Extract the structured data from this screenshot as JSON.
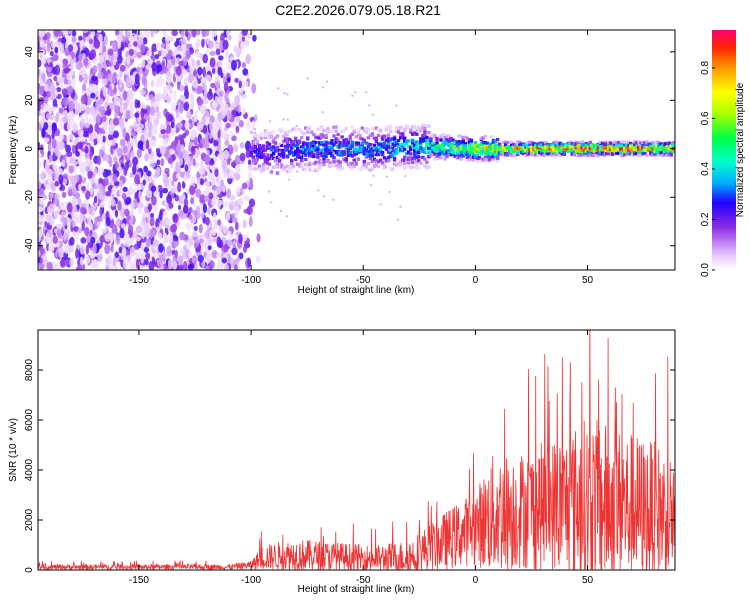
{
  "title": "C2E2.2026.079.05.18.R21",
  "chart_data": [
    {
      "type": "heatmap",
      "xlabel": "Height of straight line (km)",
      "ylabel": "Frequency (Hz)",
      "xlim": [
        -195,
        89
      ],
      "ylim": [
        -50,
        49
      ],
      "xticks": [
        -150,
        -100,
        -50,
        0,
        50
      ],
      "yticks": [
        -40,
        -20,
        0,
        20,
        40
      ],
      "colorbar": {
        "label": "Normalized spectral amplitude",
        "range": [
          0,
          0.95
        ],
        "ticks": [
          0.0,
          0.2,
          0.4,
          0.6,
          0.8
        ],
        "tick_labels": [
          "0.0",
          "0.2",
          "0.4",
          "0.6",
          "0.8"
        ]
      },
      "description_points": {
        "noise_region_x": [
          -195,
          -95
        ],
        "main_band_frequency": 0,
        "band_x_range": [
          -100,
          89
        ]
      },
      "band_profile": [
        {
          "x": -100,
          "center_hz": -2,
          "peak_amplitude": 0.25
        },
        {
          "x": -75,
          "center_hz": 0,
          "peak_amplitude": 0.35
        },
        {
          "x": -50,
          "center_hz": 0,
          "peak_amplitude": 0.35
        },
        {
          "x": -25,
          "center_hz": 1,
          "peak_amplitude": 0.45
        },
        {
          "x": 0,
          "center_hz": 0,
          "peak_amplitude": 0.7
        },
        {
          "x": 25,
          "center_hz": 0,
          "peak_amplitude": 0.85
        },
        {
          "x": 50,
          "center_hz": 0,
          "peak_amplitude": 0.9
        },
        {
          "x": 75,
          "center_hz": 0,
          "peak_amplitude": 0.9
        }
      ]
    },
    {
      "type": "line",
      "xlabel": "Height of straight line (km)",
      "ylabel": "SNR (10 * v/v)",
      "xlim": [
        -195,
        89
      ],
      "ylim": [
        0,
        9600
      ],
      "xticks": [
        -150,
        -100,
        -50,
        0,
        50
      ],
      "yticks": [
        0,
        2000,
        4000,
        6000,
        8000
      ],
      "series": [
        {
          "color": "#ee3333",
          "envelope": [
            {
              "x": -195,
              "base": 120,
              "amp": 200
            },
            {
              "x": -110,
              "base": 120,
              "amp": 200
            },
            {
              "x": -100,
              "base": 200,
              "amp": 300
            },
            {
              "x": -95,
              "base": 500,
              "amp": 900
            },
            {
              "x": -80,
              "base": 600,
              "amp": 1200
            },
            {
              "x": -60,
              "base": 500,
              "amp": 1100
            },
            {
              "x": -45,
              "base": 450,
              "amp": 1000
            },
            {
              "x": -30,
              "base": 500,
              "amp": 1300
            },
            {
              "x": -20,
              "base": 900,
              "amp": 1800
            },
            {
              "x": -10,
              "base": 1300,
              "amp": 2300
            },
            {
              "x": 0,
              "base": 1700,
              "amp": 2700
            },
            {
              "x": 8,
              "base": 2200,
              "amp": 4500
            },
            {
              "x": 20,
              "base": 2400,
              "amp": 4300
            },
            {
              "x": 40,
              "base": 2600,
              "amp": 5300
            },
            {
              "x": 50,
              "base": 2700,
              "amp": 6300
            },
            {
              "x": 70,
              "base": 2500,
              "amp": 5500
            },
            {
              "x": 89,
              "base": 2200,
              "amp": 4700
            }
          ]
        }
      ]
    }
  ]
}
